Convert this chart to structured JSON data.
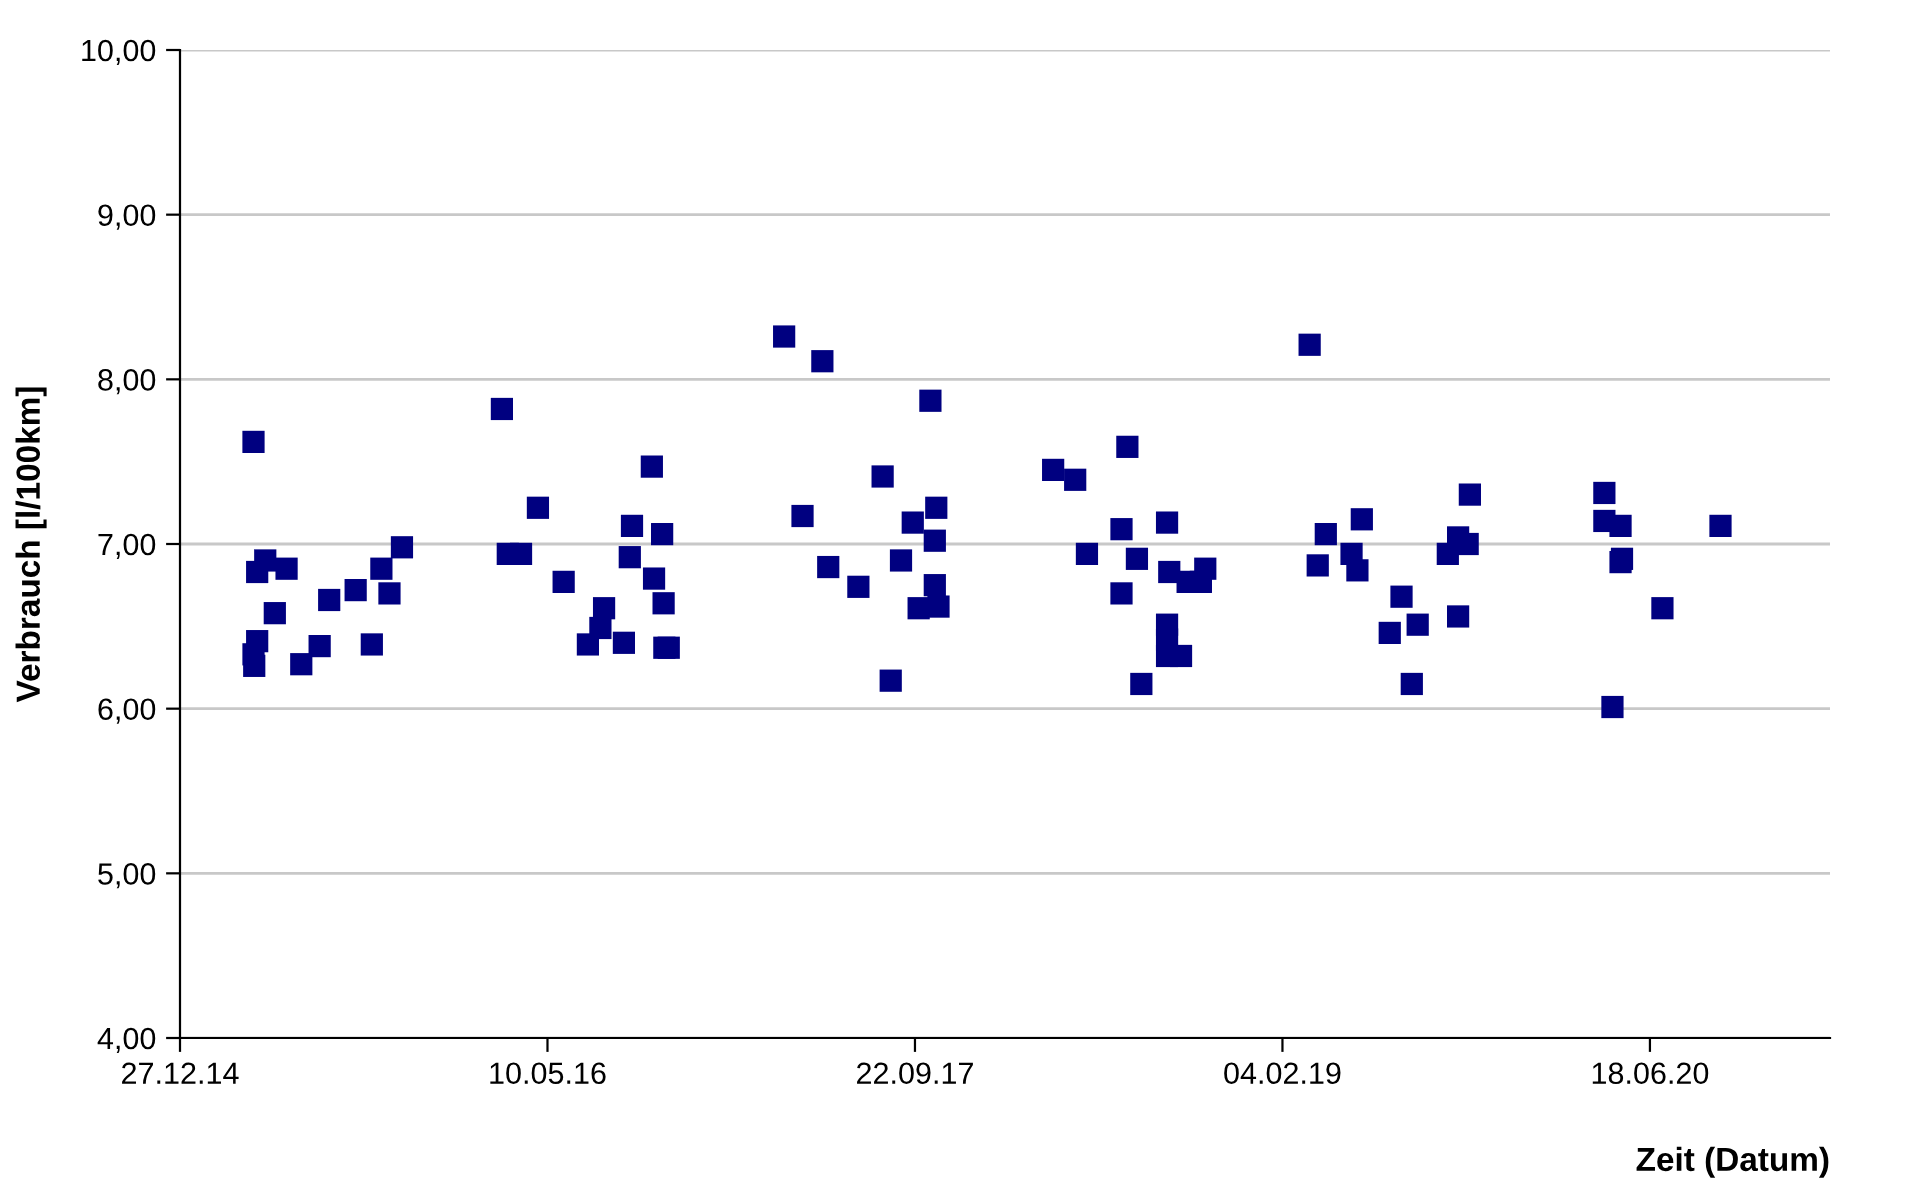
{
  "chart_data": {
    "type": "scatter",
    "xlabel": "Zeit (Datum)",
    "ylabel": "Verbrauch [l/100km]",
    "marker": "square",
    "grid": "y",
    "legend": false,
    "xlim": [
      "2014-12-27",
      "2021-02-18"
    ],
    "xticks": [
      {
        "value": "2014-12-27",
        "label": "27.12.14"
      },
      {
        "value": "2016-05-10",
        "label": "10.05.16"
      },
      {
        "value": "2017-09-22",
        "label": "22.09.17"
      },
      {
        "value": "2019-02-04",
        "label": "04.02.19"
      },
      {
        "value": "2020-06-18",
        "label": "18.06.20"
      }
    ],
    "ylim": [
      4,
      10
    ],
    "yticks": [
      {
        "value": 4,
        "label": "4,00"
      },
      {
        "value": 5,
        "label": "5,00"
      },
      {
        "value": 6,
        "label": "6,00"
      },
      {
        "value": 7,
        "label": "7,00"
      },
      {
        "value": 8,
        "label": "8,00"
      },
      {
        "value": 9,
        "label": "9,00"
      },
      {
        "value": 10,
        "label": "10,00"
      }
    ],
    "series": [
      {
        "color": "#000080",
        "x": [
          "2015-04-06",
          "2015-04-22",
          "2015-04-11",
          "2015-05-21",
          "2015-05-05",
          "2015-04-11",
          "2015-04-06",
          "2015-04-07",
          "2015-07-18",
          "2015-08-23",
          "2015-07-05",
          "2015-06-10",
          "2015-09-14",
          "2015-09-27",
          "2015-10-08",
          "2015-10-25",
          "2016-03-09",
          "2016-03-17",
          "2016-04-04",
          "2016-04-27",
          "2016-06-01",
          "2016-09-29",
          "2016-09-02",
          "2016-10-13",
          "2016-08-30",
          "2016-10-02",
          "2016-10-15",
          "2016-07-26",
          "2016-07-21",
          "2016-07-04",
          "2016-08-22",
          "2016-10-16",
          "2016-10-22",
          "2017-03-28",
          "2017-05-19",
          "2017-10-13",
          "2017-08-09",
          "2017-04-22",
          "2017-10-21",
          "2017-09-19",
          "2017-10-19",
          "2017-05-27",
          "2017-09-03",
          "2017-07-07",
          "2017-10-19",
          "2017-09-27",
          "2017-10-24",
          "2017-08-20",
          "2018-03-29",
          "2018-04-28",
          "2018-07-08",
          "2018-06-30",
          "2018-08-31",
          "2018-05-14",
          "2018-07-21",
          "2018-09-03",
          "2018-10-22",
          "2018-09-28",
          "2018-10-16",
          "2018-06-30",
          "2018-08-31",
          "2018-08-31",
          "2018-08-31",
          "2018-09-19",
          "2018-07-27",
          "2019-03-13",
          "2019-04-04",
          "2019-05-23",
          "2019-03-24",
          "2019-05-09",
          "2019-05-17",
          "2019-10-17",
          "2019-10-01",
          "2019-10-14",
          "2019-09-17",
          "2019-07-16",
          "2019-06-30",
          "2019-08-07",
          "2019-10-01",
          "2019-07-30",
          "2020-04-17",
          "2020-04-17",
          "2020-05-09",
          "2020-05-11",
          "2020-05-09",
          "2020-07-05",
          "2020-09-22",
          "2020-04-28"
        ],
        "values": [
          7.62,
          6.9,
          6.83,
          6.85,
          6.58,
          6.41,
          6.33,
          6.26,
          6.66,
          6.72,
          6.38,
          6.27,
          6.39,
          6.85,
          6.7,
          6.98,
          7.82,
          6.94,
          6.94,
          7.22,
          6.77,
          7.47,
          7.11,
          7.06,
          6.92,
          6.79,
          6.64,
          6.61,
          6.49,
          6.39,
          6.4,
          6.37,
          6.37,
          8.26,
          8.11,
          7.87,
          7.41,
          7.17,
          7.22,
          7.13,
          7.02,
          6.86,
          6.9,
          6.74,
          6.75,
          6.61,
          6.62,
          6.17,
          7.45,
          7.39,
          7.59,
          7.09,
          7.13,
          6.94,
          6.91,
          6.83,
          6.85,
          6.77,
          6.77,
          6.7,
          6.51,
          6.42,
          6.32,
          6.32,
          6.15,
          8.21,
          7.06,
          7.15,
          6.87,
          6.94,
          6.84,
          7.3,
          7.04,
          7.0,
          6.94,
          6.68,
          6.46,
          6.51,
          6.56,
          6.15,
          7.31,
          7.14,
          7.11,
          6.91,
          6.89,
          6.61,
          7.11,
          6.01
        ]
      }
    ]
  }
}
